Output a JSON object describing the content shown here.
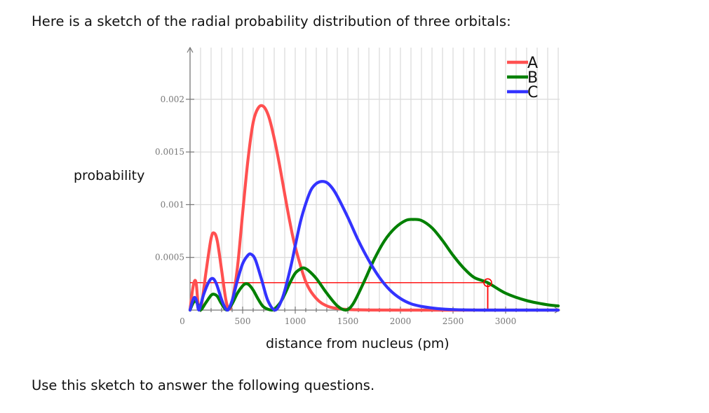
{
  "intro_text": "Here is a sketch of the radial probability distribution of three orbitals:",
  "outro_text": "Use this sketch to answer the following questions.",
  "chart_data": {
    "type": "line",
    "title": "",
    "xlabel": "distance from nucleus (pm)",
    "ylabel": "probability",
    "xlim": [
      0,
      3500
    ],
    "ylim": [
      0,
      0.0024
    ],
    "grid": true,
    "legend_position": "top-right",
    "x_ticks": [
      0,
      500,
      1000,
      1500,
      2000,
      2500,
      3000
    ],
    "x_tick_labels": [
      "0",
      "500",
      "1000",
      "1500",
      "2000",
      "2500",
      "3000"
    ],
    "y_ticks": [
      0.0005,
      0.001,
      0.0015,
      0.002
    ],
    "y_tick_labels": [
      "0.0005",
      "0.001",
      "0.0015",
      "0.002"
    ],
    "series": [
      {
        "name": "A",
        "color": "#ff5050",
        "x": [
          0,
          25,
          45,
          60,
          80,
          110,
          150,
          200,
          230,
          260,
          300,
          340,
          370,
          400,
          450,
          500,
          550,
          600,
          650,
          700,
          750,
          800,
          850,
          900,
          950,
          1000,
          1100,
          1200,
          1300,
          1400,
          1500,
          1700,
          2000,
          2500,
          3000,
          3500
        ],
        "y": [
          0,
          0.0002,
          0.00028,
          0.00024,
          4e-05,
          6e-05,
          0.00035,
          0.00068,
          0.00073,
          0.00065,
          0.00038,
          0.0001,
          1e-05,
          8e-05,
          0.0004,
          0.00092,
          0.00142,
          0.00178,
          0.00192,
          0.00193,
          0.00183,
          0.00163,
          0.00138,
          0.0011,
          0.00083,
          0.0006,
          0.00027,
          0.00011,
          4e-05,
          1.5e-05,
          6e-06,
          1e-06,
          0,
          0,
          0,
          0
        ]
      },
      {
        "name": "B",
        "color": "#008000",
        "x": [
          0,
          25,
          50,
          75,
          100,
          150,
          200,
          230,
          260,
          300,
          350,
          400,
          450,
          500,
          530,
          560,
          600,
          650,
          700,
          780,
          850,
          900,
          950,
          1000,
          1050,
          1080,
          1120,
          1200,
          1300,
          1400,
          1480,
          1550,
          1650,
          1750,
          1850,
          1950,
          2050,
          2120,
          2200,
          2300,
          2400,
          2500,
          2600,
          2700,
          2830,
          3000,
          3200,
          3400,
          3500
        ],
        "y": [
          0,
          6e-05,
          9e-05,
          5e-05,
          0.0,
          7e-05,
          0.00014,
          0.00015,
          0.00013,
          6e-05,
          0.0,
          6e-05,
          0.00016,
          0.00023,
          0.00025,
          0.00024,
          0.00019,
          0.0001,
          3e-05,
          0.0,
          6e-05,
          0.00015,
          0.00026,
          0.00035,
          0.00039,
          0.0004,
          0.00038,
          0.0003,
          0.00016,
          4e-05,
          0.0,
          6e-05,
          0.00026,
          0.00048,
          0.00066,
          0.00078,
          0.00085,
          0.00086,
          0.00085,
          0.00078,
          0.00066,
          0.00052,
          0.0004,
          0.00031,
          0.00026,
          0.00016,
          9e-05,
          5e-05,
          4e-05
        ]
      },
      {
        "name": "C",
        "color": "#3333ff",
        "x": [
          0,
          25,
          45,
          65,
          85,
          130,
          180,
          215,
          250,
          300,
          340,
          360,
          400,
          450,
          500,
          550,
          580,
          620,
          680,
          740,
          810,
          880,
          950,
          1000,
          1050,
          1100,
          1150,
          1200,
          1250,
          1300,
          1350,
          1400,
          1500,
          1600,
          1700,
          1800,
          1900,
          2000,
          2100,
          2200,
          2300,
          2400,
          2500,
          2600,
          2800,
          3000,
          3500
        ],
        "y": [
          0,
          9e-05,
          0.00012,
          8e-05,
          0.0,
          0.00015,
          0.00027,
          0.0003,
          0.00025,
          0.0001,
          1e-05,
          0.0,
          9e-05,
          0.00028,
          0.00044,
          0.00052,
          0.00053,
          0.00048,
          0.00029,
          9e-05,
          0.0,
          0.00012,
          0.00038,
          0.00061,
          0.00084,
          0.00101,
          0.00114,
          0.0012,
          0.00122,
          0.00121,
          0.00116,
          0.00108,
          0.00088,
          0.00066,
          0.00047,
          0.00031,
          0.00019,
          0.00011,
          6e-05,
          3.5e-05,
          2e-05,
          1e-05,
          5e-06,
          2e-06,
          0,
          0,
          0
        ]
      }
    ],
    "annotations": [
      {
        "type": "horizontal-line",
        "y": 0.00026,
        "x_from": 0,
        "x_to": 2830,
        "color": "#ff0000"
      },
      {
        "type": "vertical-line",
        "x": 2830,
        "y_from": 0,
        "y_to": 0.00026,
        "color": "#ff0000"
      },
      {
        "type": "circle-marker",
        "x": 2830,
        "y": 0.00026,
        "color": "#ff0000",
        "on_series": "B"
      }
    ]
  }
}
